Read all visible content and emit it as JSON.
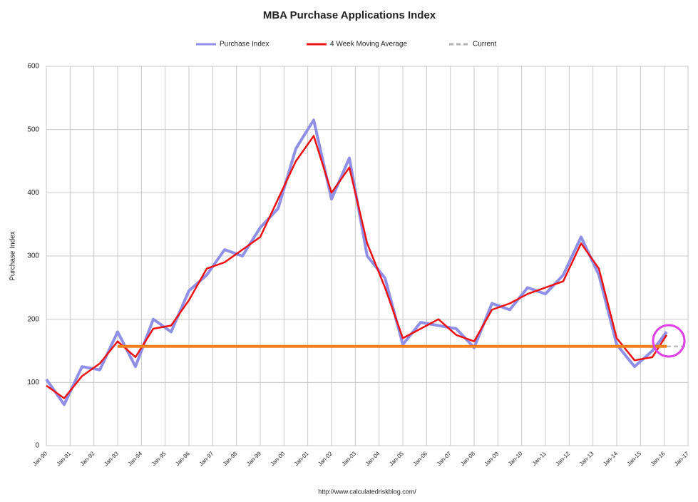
{
  "chart_data": {
    "type": "line",
    "title": "MBA Purchase Applications Index",
    "y_label": "Purchase Index",
    "source": "http://www.calculatedriskblog.com/",
    "xlim": [
      1990,
      2017
    ],
    "xticks": [
      {
        "value": 1990,
        "label": "Jan-90"
      },
      {
        "value": 1991,
        "label": "Jan-91"
      },
      {
        "value": 1992,
        "label": "Jan-92"
      },
      {
        "value": 1993,
        "label": "Jan-93"
      },
      {
        "value": 1994,
        "label": "Jan-94"
      },
      {
        "value": 1995,
        "label": "Jan-95"
      },
      {
        "value": 1996,
        "label": "Jan-96"
      },
      {
        "value": 1997,
        "label": "Jan-97"
      },
      {
        "value": 1998,
        "label": "Jan-98"
      },
      {
        "value": 1999,
        "label": "Jan-99"
      },
      {
        "value": 2000,
        "label": "Jan-00"
      },
      {
        "value": 2001,
        "label": "Jan-01"
      },
      {
        "value": 2002,
        "label": "Jan-02"
      },
      {
        "value": 2003,
        "label": "Jan-03"
      },
      {
        "value": 2004,
        "label": "Jan-04"
      },
      {
        "value": 2005,
        "label": "Jan-05"
      },
      {
        "value": 2006,
        "label": "Jan-06"
      },
      {
        "value": 2007,
        "label": "Jan-07"
      },
      {
        "value": 2008,
        "label": "Jan-08"
      },
      {
        "value": 2009,
        "label": "Jan-09"
      },
      {
        "value": 2010,
        "label": "Jan-10"
      },
      {
        "value": 2011,
        "label": "Jan-11"
      },
      {
        "value": 2012,
        "label": "Jan-12"
      },
      {
        "value": 2013,
        "label": "Jan-13"
      },
      {
        "value": 2014,
        "label": "Jan-14"
      },
      {
        "value": 2015,
        "label": "Jan-15"
      },
      {
        "value": 2016,
        "label": "Jan-16"
      },
      {
        "value": 2017,
        "label": "Jan-17"
      }
    ],
    "ylim": [
      0,
      600
    ],
    "yticks": [
      0,
      100,
      200,
      300,
      400,
      500,
      600
    ],
    "grid": true,
    "series": [
      {
        "name": "Purchase Index",
        "color": "#8f8fe8",
        "width": 4,
        "x": [
          1990,
          1990.75,
          1991.5,
          1992.25,
          1993,
          1993.75,
          1994.5,
          1995.25,
          1996,
          1996.75,
          1997.5,
          1998.25,
          1999,
          1999.75,
          2000.5,
          2001.25,
          2002,
          2002.75,
          2003.5,
          2004.25,
          2005,
          2005.75,
          2006.5,
          2007.25,
          2008,
          2008.75,
          2009.5,
          2010.25,
          2011,
          2011.75,
          2012.5,
          2013.25,
          2014,
          2014.75,
          2015.5,
          2016.1
        ],
        "values": [
          105,
          65,
          125,
          120,
          180,
          125,
          200,
          180,
          245,
          270,
          310,
          300,
          345,
          375,
          470,
          515,
          390,
          455,
          300,
          265,
          160,
          195,
          190,
          185,
          155,
          225,
          215,
          250,
          240,
          270,
          330,
          270,
          160,
          125,
          150,
          180
        ]
      },
      {
        "name": "4 Week Moving Average",
        "color": "#ee1111",
        "width": 2.5,
        "x": [
          1990,
          1990.75,
          1991.5,
          1992.25,
          1993,
          1993.75,
          1994.5,
          1995.25,
          1996,
          1996.75,
          1997.5,
          1998.25,
          1999,
          1999.75,
          2000.5,
          2001.25,
          2002,
          2002.75,
          2003.5,
          2004.25,
          2005,
          2005.75,
          2006.5,
          2007.25,
          2008,
          2008.75,
          2009.5,
          2010.25,
          2011,
          2011.75,
          2012.5,
          2013.25,
          2014,
          2014.75,
          2015.5,
          2016.1
        ],
        "values": [
          95,
          75,
          110,
          130,
          165,
          140,
          185,
          190,
          230,
          280,
          290,
          310,
          330,
          390,
          450,
          490,
          400,
          440,
          320,
          250,
          170,
          185,
          200,
          175,
          165,
          215,
          225,
          240,
          250,
          260,
          320,
          280,
          170,
          135,
          140,
          175
        ]
      },
      {
        "name": "Current",
        "color": "#b0b0b0",
        "width": 2,
        "dashed": true,
        "x": [
          1993,
          2017
        ],
        "values": [
          157,
          157
        ]
      }
    ],
    "highlight_line": {
      "color": "#f07f1f",
      "x": [
        1993,
        2016.1
      ],
      "value": 157
    }
  }
}
